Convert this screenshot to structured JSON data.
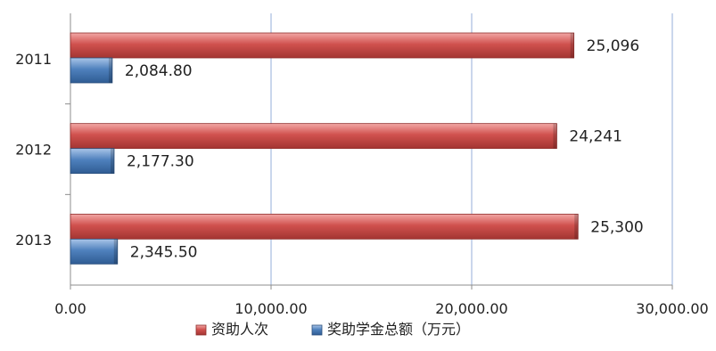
{
  "chart_data": {
    "type": "bar",
    "orientation": "horizontal",
    "categories": [
      "2011",
      "2012",
      "2013"
    ],
    "series": [
      {
        "name": "资助人次",
        "values": [
          25096,
          24241,
          25300
        ],
        "labels": [
          "25,096",
          "24,241",
          "25,300"
        ],
        "color": "#C0504D"
      },
      {
        "name": "奖助学金总额（万元）",
        "values": [
          2084.8,
          2177.3,
          2345.5
        ],
        "labels": [
          "2,084.80",
          "2,177.30",
          "2,345.50"
        ],
        "color": "#4F81BD"
      }
    ],
    "x_ticks": [
      "0.00",
      "10,000.00",
      "20,000.00",
      "30,000.00"
    ],
    "xlim": [
      0,
      30000
    ],
    "grid": "vertical",
    "legend_position": "bottom"
  }
}
